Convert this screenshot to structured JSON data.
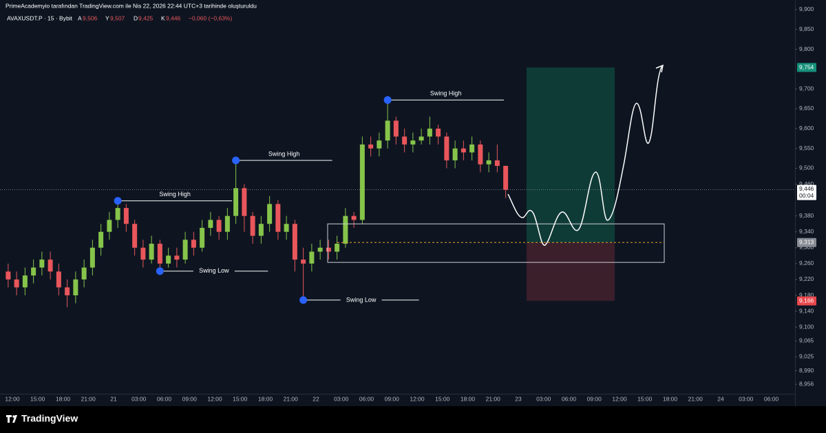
{
  "header": {
    "attribution": "PrimeAcademyio tarafından TradingView.com ile Nis 22, 2026 22:44 UTC+3 tarihinde oluşturuldu",
    "symbol": "AVAXUSDT.P · 15 · Bybit",
    "ohlc_labels": [
      "A",
      "Y",
      "D",
      "K"
    ],
    "ohlc_values": [
      "9,506",
      "9,507",
      "9,425",
      "9,446"
    ],
    "change": "−0,060 (−0,63%)"
  },
  "footer": {
    "logo": "TradingView"
  },
  "chart_data": {
    "type": "candlestick",
    "up_color": "#86c44a",
    "down_color": "#e8565b",
    "ylim": [
      8.932,
      9.924
    ],
    "yticks": [
      {
        "value": 9.9,
        "label": "9,900"
      },
      {
        "value": 9.85,
        "label": "9,850"
      },
      {
        "value": 9.8,
        "label": "9,800"
      },
      {
        "value": 9.7,
        "label": "9,700"
      },
      {
        "value": 9.65,
        "label": "9,650"
      },
      {
        "value": 9.6,
        "label": "9,600"
      },
      {
        "value": 9.55,
        "label": "9,550"
      },
      {
        "value": 9.5,
        "label": "9,500"
      },
      {
        "value": 9.46,
        "label": "9,460"
      },
      {
        "value": 9.38,
        "label": "9,380"
      },
      {
        "value": 9.34,
        "label": "9,340"
      },
      {
        "value": 9.3,
        "label": "9,300"
      },
      {
        "value": 9.26,
        "label": "9,260"
      },
      {
        "value": 9.22,
        "label": "9,220"
      },
      {
        "value": 9.18,
        "label": "9,180"
      },
      {
        "value": 9.14,
        "label": "9,140"
      },
      {
        "value": 9.1,
        "label": "9,100"
      },
      {
        "value": 9.065,
        "label": "9,065"
      },
      {
        "value": 9.025,
        "label": "9,025"
      },
      {
        "value": 8.99,
        "label": "8,990"
      },
      {
        "value": 8.956,
        "label": "8,956"
      }
    ],
    "time_labels": [
      "12:00",
      "15:00",
      "18:00",
      "21:00",
      "21",
      "03:00",
      "06:00",
      "09:00",
      "12:00",
      "15:00",
      "18:00",
      "21:00",
      "22",
      "03:00",
      "06:00",
      "09:00",
      "12:00",
      "15:00",
      "18:00",
      "21:00",
      "23",
      "03:00",
      "06:00",
      "09:00",
      "12:00",
      "15:00",
      "18:00",
      "21:00",
      "24",
      "03:00",
      "06:00"
    ],
    "open": [
      9.24,
      9.22,
      9.2,
      9.23,
      9.25,
      9.27,
      9.24,
      9.2,
      9.18,
      9.22,
      9.25,
      9.3,
      9.34,
      9.37,
      9.4,
      9.36,
      9.3,
      9.27,
      9.31,
      9.26,
      9.28,
      9.27,
      9.32,
      9.3,
      9.35,
      9.37,
      9.34,
      9.38,
      9.45,
      9.38,
      9.33,
      9.36,
      9.41,
      9.34,
      9.36,
      9.27,
      9.26,
      9.29,
      9.3,
      9.29,
      9.31,
      9.38,
      9.37,
      9.56,
      9.55,
      9.57,
      9.62,
      9.58,
      9.56,
      9.57,
      9.58,
      9.6,
      9.58,
      9.52,
      9.55,
      9.54,
      9.56,
      9.51,
      9.52,
      9.506
    ],
    "high": [
      9.26,
      9.24,
      9.25,
      9.27,
      9.29,
      9.29,
      9.26,
      9.22,
      9.24,
      9.27,
      9.32,
      9.36,
      9.39,
      9.418,
      9.41,
      9.37,
      9.32,
      9.33,
      9.32,
      9.3,
      9.3,
      9.34,
      9.34,
      9.37,
      9.39,
      9.38,
      9.4,
      9.52,
      9.46,
      9.39,
      9.38,
      9.43,
      9.42,
      9.38,
      9.37,
      9.3,
      9.31,
      9.32,
      9.32,
      9.33,
      9.4,
      9.39,
      9.58,
      9.58,
      9.59,
      9.672,
      9.63,
      9.6,
      9.59,
      9.6,
      9.63,
      9.61,
      9.59,
      9.57,
      9.57,
      9.58,
      9.57,
      9.54,
      9.56,
      9.507
    ],
    "low": [
      9.2,
      9.18,
      9.18,
      9.21,
      9.23,
      9.22,
      9.18,
      9.15,
      9.16,
      9.2,
      9.23,
      9.28,
      9.32,
      9.35,
      9.34,
      9.28,
      9.25,
      9.26,
      9.241,
      9.25,
      9.25,
      9.26,
      9.28,
      9.29,
      9.33,
      9.32,
      9.32,
      9.36,
      9.34,
      9.31,
      9.31,
      9.34,
      9.32,
      9.32,
      9.24,
      9.168,
      9.24,
      9.27,
      9.27,
      9.27,
      9.3,
      9.35,
      9.36,
      9.53,
      9.53,
      9.55,
      9.56,
      9.54,
      9.54,
      9.56,
      9.56,
      9.56,
      9.5,
      9.5,
      9.52,
      9.52,
      9.49,
      9.49,
      9.49,
      9.425
    ],
    "close": [
      9.22,
      9.2,
      9.23,
      9.25,
      9.27,
      9.24,
      9.2,
      9.18,
      9.22,
      9.25,
      9.3,
      9.34,
      9.37,
      9.4,
      9.36,
      9.3,
      9.27,
      9.31,
      9.26,
      9.28,
      9.27,
      9.32,
      9.3,
      9.35,
      9.37,
      9.34,
      9.38,
      9.45,
      9.38,
      9.33,
      9.36,
      9.41,
      9.34,
      9.36,
      9.27,
      9.26,
      9.29,
      9.3,
      9.29,
      9.31,
      9.38,
      9.37,
      9.56,
      9.55,
      9.57,
      9.62,
      9.58,
      9.56,
      9.57,
      9.58,
      9.6,
      9.58,
      9.52,
      9.55,
      9.54,
      9.56,
      9.51,
      9.52,
      9.506,
      9.446
    ],
    "annotations": [
      "Swing High",
      "Swing Low",
      "Swing High",
      "Swing Low",
      "Swing High"
    ],
    "zone": [
      9.263,
      9.36
    ],
    "position": {
      "target": {
        "value": 9.754,
        "label": "9,754"
      },
      "entry": {
        "value": 9.313,
        "label": "9,313"
      },
      "stop": {
        "value": 9.166,
        "label": "9,166"
      }
    },
    "last_price": {
      "value": 9.446,
      "label": "9,446"
    },
    "countdown": "00:04"
  }
}
